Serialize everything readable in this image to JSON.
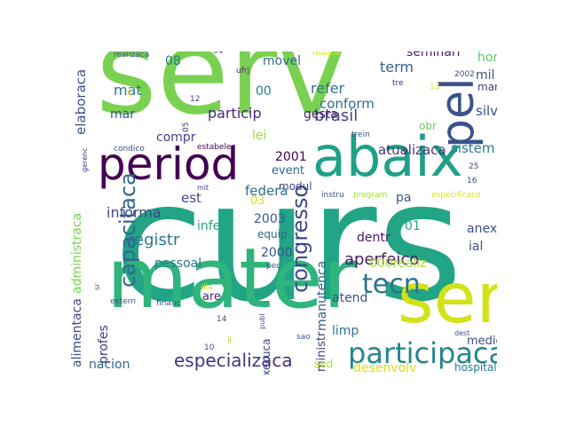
{
  "words": [
    {
      "text": "curs",
      "color": "#21a585"
    },
    {
      "text": "serv",
      "color": "#7ad151"
    },
    {
      "text": "mater",
      "color": "#2fb47c"
    },
    {
      "text": "abaix",
      "color": "#1fa088"
    },
    {
      "text": "period",
      "color": "#440154"
    },
    {
      "text": "ser",
      "color": "#d2e21b"
    },
    {
      "text": "pel",
      "color": "#3b528b"
    },
    {
      "text": "participaca",
      "color": "#25858e"
    },
    {
      "text": "capacitaca",
      "color": "#32658e"
    },
    {
      "text": "congresso",
      "color": "#3e4a89"
    },
    {
      "text": "tecn",
      "color": "#2c728e"
    },
    {
      "text": "especializaca",
      "color": "#46337e"
    },
    {
      "text": "aperfeico",
      "color": "#481a6c"
    },
    {
      "text": "registr",
      "color": "#2a788e"
    },
    {
      "text": "brasil",
      "color": "#414487"
    },
    {
      "text": "elaboraca",
      "color": "#3b528b"
    },
    {
      "text": "refer",
      "color": "#2c728e"
    },
    {
      "text": "conform",
      "color": "#2e6e8e"
    },
    {
      "text": "particip",
      "color": "#482878"
    },
    {
      "text": "informa",
      "color": "#3e4989"
    },
    {
      "text": "mat",
      "color": "#2a788e"
    },
    {
      "text": "mar",
      "color": "#3b528b"
    },
    {
      "text": "gesta",
      "color": "#481f70"
    },
    {
      "text": "event",
      "color": "#306a8e"
    },
    {
      "text": "2001",
      "color": "#440154"
    },
    {
      "text": "sistem",
      "color": "#287c8e"
    },
    {
      "text": "atualizaca",
      "color": "#472f7d"
    },
    {
      "text": "term",
      "color": "#355f8d"
    },
    {
      "text": "seminari",
      "color": "#481b6d"
    },
    {
      "text": "hor",
      "color": "#5ec962"
    },
    {
      "text": "mil",
      "color": "#3b528b"
    },
    {
      "text": "marc",
      "color": "#433e85"
    },
    {
      "text": "silv",
      "color": "#3b528b"
    },
    {
      "text": "obr",
      "color": "#6ccd5a"
    },
    {
      "text": "movel",
      "color": "#31688e"
    },
    {
      "text": "08",
      "color": "#2a788e"
    },
    {
      "text": "00",
      "color": "#27808e"
    },
    {
      "text": "lei",
      "color": "#a0da39"
    },
    {
      "text": "compr",
      "color": "#433e85"
    },
    {
      "text": "administraca",
      "color": "#7ad151"
    },
    {
      "text": "alimentaca",
      "color": "#3e4989"
    },
    {
      "text": "federa",
      "color": "#2d708e"
    },
    {
      "text": "est",
      "color": "#3e4989"
    },
    {
      "text": "modul",
      "color": "#404688"
    },
    {
      "text": "03",
      "color": "#d8e219"
    },
    {
      "text": "2003",
      "color": "#38598c"
    },
    {
      "text": "2000",
      "color": "#3b528b"
    },
    {
      "text": "equip",
      "color": "#31688e"
    },
    {
      "text": "inferi",
      "color": "#22a884"
    },
    {
      "text": "pessoal",
      "color": "#2a788e"
    },
    {
      "text": "dentr",
      "color": "#481567"
    },
    {
      "text": "01",
      "color": "#22a884"
    },
    {
      "text": "pa",
      "color": "#3b528b"
    },
    {
      "text": "anex",
      "color": "#3a538b"
    },
    {
      "text": "ial",
      "color": "#3b528b"
    },
    {
      "text": "000realiz",
      "color": "#a5db36"
    },
    {
      "text": "manutenca",
      "color": "#365c8d"
    },
    {
      "text": "atend",
      "color": "#3b528b"
    },
    {
      "text": "limp",
      "color": "#2c728e"
    },
    {
      "text": "ministr",
      "color": "#423f85"
    },
    {
      "text": "execuca",
      "color": "#404688"
    },
    {
      "text": "profes",
      "color": "#46327e"
    },
    {
      "text": "nacion",
      "color": "#31688e"
    },
    {
      "text": "sed",
      "color": "#b8de29"
    },
    {
      "text": "desenvolv",
      "color": "#d5e21a"
    },
    {
      "text": "medic",
      "color": "#3e4989"
    },
    {
      "text": "hospital",
      "color": "#2a788e"
    },
    {
      "text": "are",
      "color": "#482677"
    },
    {
      "text": "realizaca",
      "color": "#3b528b"
    },
    {
      "text": "realizar",
      "color": "#d8e219"
    },
    {
      "text": "04",
      "color": "#3e4989"
    },
    {
      "text": "ufrj",
      "color": "#482173"
    },
    {
      "text": "tre",
      "color": "#482878"
    },
    {
      "text": "2002",
      "color": "#3b528b"
    },
    {
      "text": "13",
      "color": "#d8e219"
    },
    {
      "text": "12",
      "color": "#3e4989"
    },
    {
      "text": "so",
      "color": "#fde725"
    },
    {
      "text": "05",
      "color": "#46327e"
    },
    {
      "text": "condico",
      "color": "#3b528b"
    },
    {
      "text": "estabelec",
      "color": "#440154"
    },
    {
      "text": "trein",
      "color": "#3b528b"
    },
    {
      "text": "gerenc",
      "color": "#46327e"
    },
    {
      "text": "25",
      "color": "#414487"
    },
    {
      "text": "16",
      "color": "#3b528b"
    },
    {
      "text": "mit",
      "color": "#3e4989"
    },
    {
      "text": "instru",
      "color": "#3b528b"
    },
    {
      "text": "program",
      "color": "#a5db36"
    },
    {
      "text": "especificaco",
      "color": "#d8e219"
    },
    {
      "text": "extern",
      "color": "#3b528b"
    },
    {
      "text": "financ",
      "color": "#3b528b"
    },
    {
      "text": "dia",
      "color": "#d8e219"
    },
    {
      "text": "sr",
      "color": "#3b528b"
    },
    {
      "text": "pec",
      "color": "#3b528b"
    },
    {
      "text": "publ",
      "color": "#3e4989"
    },
    {
      "text": "14",
      "color": "#3b528b"
    },
    {
      "text": "li",
      "color": "#b8de29"
    },
    {
      "text": "sao",
      "color": "#3b528b"
    },
    {
      "text": "dest",
      "color": "#3b528b"
    },
    {
      "text": "10",
      "color": "#3b528b"
    }
  ]
}
